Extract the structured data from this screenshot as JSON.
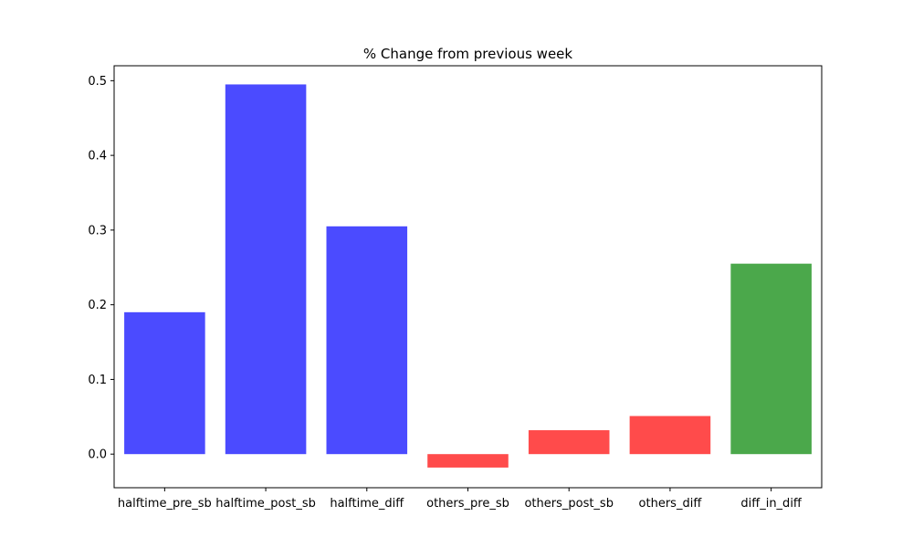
{
  "chart_data": {
    "type": "bar",
    "title": "% Change from previous week",
    "xlabel": "",
    "ylabel": "",
    "categories": [
      "halftime_pre_sb",
      "halftime_post_sb",
      "halftime_diff",
      "others_pre_sb",
      "others_post_sb",
      "others_diff",
      "diff_in_diff"
    ],
    "values": [
      0.19,
      0.495,
      0.305,
      -0.018,
      0.032,
      0.051,
      0.255
    ],
    "colors": [
      "#4b4bff",
      "#4b4bff",
      "#4b4bff",
      "#ff4b4b",
      "#ff4b4b",
      "#ff4b4b",
      "#4ba84b"
    ],
    "ylim": [
      -0.045,
      0.52
    ],
    "yticks": [
      "0.0",
      "0.1",
      "0.2",
      "0.3",
      "0.4",
      "0.5"
    ],
    "grid": false
  }
}
